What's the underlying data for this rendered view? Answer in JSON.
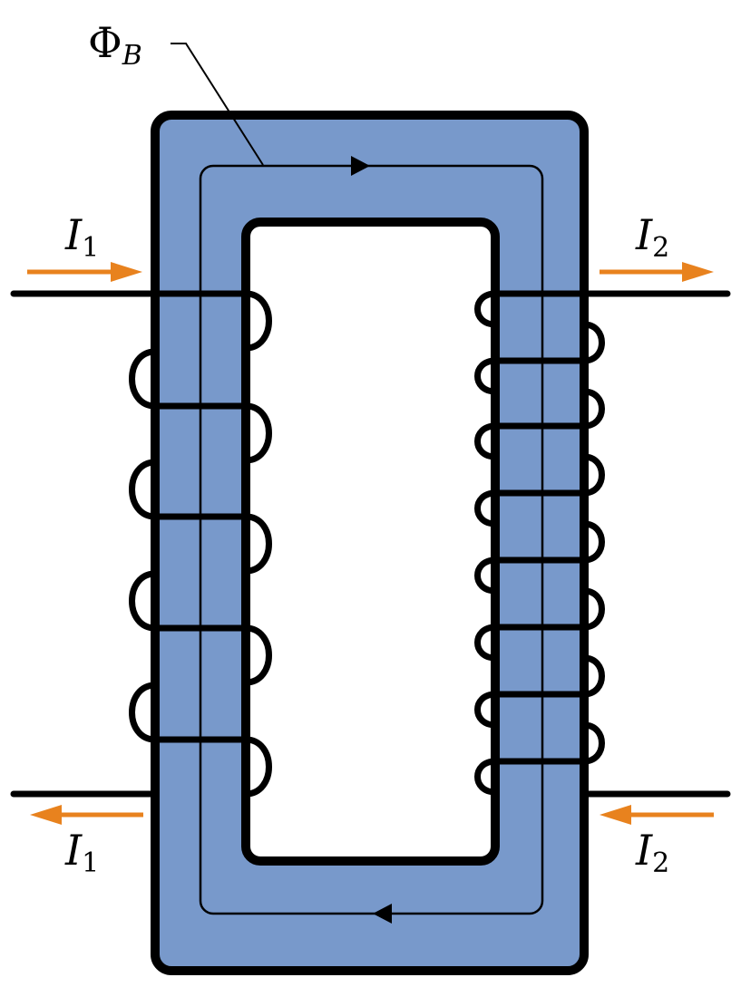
{
  "labels": {
    "flux": {
      "symbol": "Φ",
      "sub": "B"
    },
    "primary_in": {
      "symbol": "I",
      "sub": "1"
    },
    "secondary_out": {
      "symbol": "I",
      "sub": "2"
    },
    "primary_return": {
      "symbol": "I",
      "sub": "1"
    },
    "secondary_return": {
      "symbol": "I",
      "sub": "2"
    }
  },
  "colors": {
    "core": "#7899cb",
    "wire": "#000000",
    "current_arrow": "#e8821e",
    "window": "#ffffff"
  },
  "windings": {
    "primary_turns": 4,
    "secondary_turns": 7
  }
}
